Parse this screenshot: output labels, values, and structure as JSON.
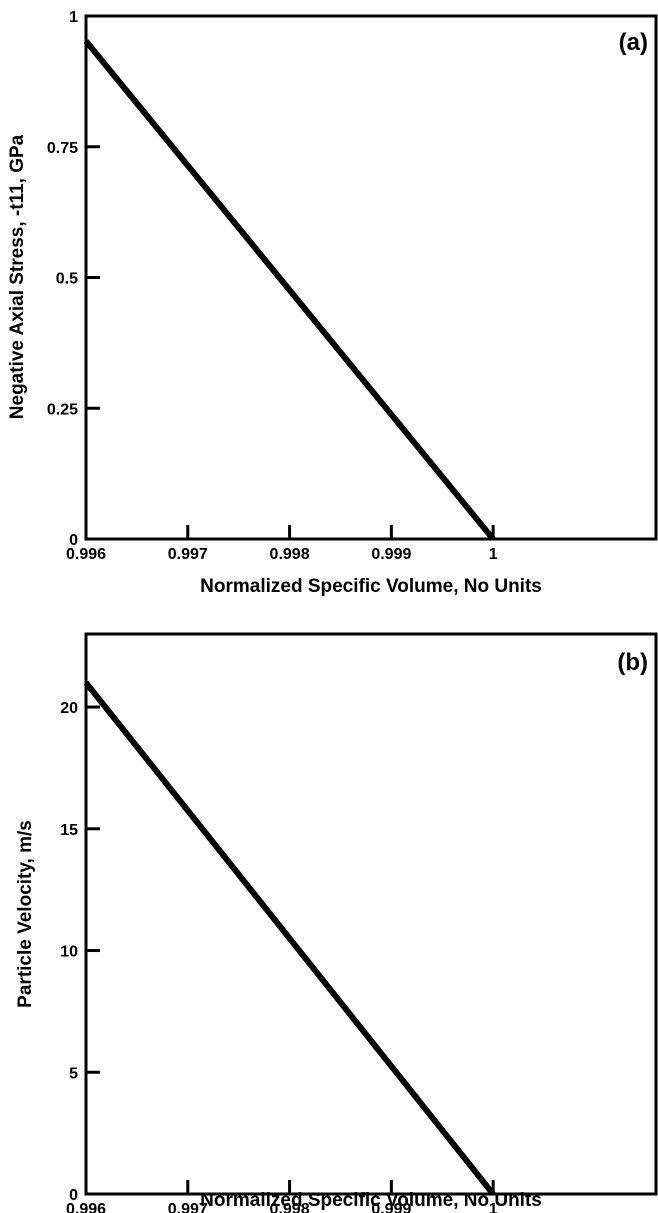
{
  "chart_data": [
    {
      "type": "line",
      "panel_label": "(a)",
      "xlabel": "Normalized Specific Volume, No Units",
      "ylabel": "Negative Axial Stress, -t11, GPa",
      "xlim": [
        0.996,
        1.0016
      ],
      "ylim": [
        0,
        1
      ],
      "xticks": [
        0.996,
        0.997,
        0.998,
        0.999,
        1.0
      ],
      "xtick_labels": [
        "0.996",
        "0.997",
        "0.998",
        "0.999",
        "1"
      ],
      "yticks": [
        0,
        0.25,
        0.5,
        0.75,
        1.0
      ],
      "ytick_labels": [
        "0",
        "0.25",
        "0.5",
        "0.75",
        "1"
      ],
      "grid": false,
      "series": [
        {
          "color": "#000000",
          "x": [
            0.996,
            1.0
          ],
          "y": [
            0.952,
            0.0
          ]
        }
      ]
    },
    {
      "type": "line",
      "panel_label": "(b)",
      "xlabel": "Normalized Specific Volume, No Units",
      "ylabel": "Particle Velocity, m/s",
      "xlim": [
        0.996,
        1.0016
      ],
      "ylim": [
        0,
        23
      ],
      "xticks": [
        0.996,
        0.997,
        0.998,
        0.999,
        1.0
      ],
      "xtick_labels": [
        "0.996",
        "0.997",
        "0.998",
        "0.999",
        "1"
      ],
      "yticks": [
        0,
        5,
        10,
        15,
        20
      ],
      "ytick_labels": [
        "0",
        "5",
        "10",
        "15",
        "20"
      ],
      "grid": false,
      "series": [
        {
          "color": "#000000",
          "x": [
            0.996,
            1.0
          ],
          "y": [
            21.0,
            0.0
          ]
        }
      ]
    }
  ]
}
